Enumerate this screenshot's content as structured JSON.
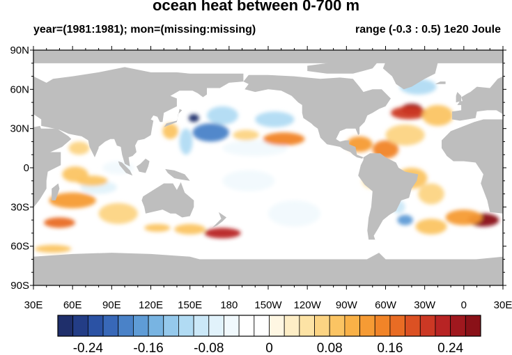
{
  "title": "ocean heat between 0-700 m",
  "subtitle_left": "year=(1981:1981); mon=(missing:missing)",
  "subtitle_right": "range (-0.3 : 0.5) 1e20 Joule",
  "map": {
    "projection": "cylindrical equidistant",
    "lon_range": [
      30,
      390
    ],
    "lat_range": [
      -90,
      90
    ],
    "land_color": "#bebebe",
    "ocean_background": "#ffffff",
    "lat_ticks": [
      {
        "lat": 90,
        "label": "90N"
      },
      {
        "lat": 60,
        "label": "60N"
      },
      {
        "lat": 30,
        "label": "30N"
      },
      {
        "lat": 0,
        "label": "0"
      },
      {
        "lat": -30,
        "label": "30S"
      },
      {
        "lat": -60,
        "label": "60S"
      },
      {
        "lat": -90,
        "label": "90S"
      }
    ],
    "lon_ticks": [
      {
        "lon": 30,
        "label": "30E"
      },
      {
        "lon": 60,
        "label": "60E"
      },
      {
        "lon": 90,
        "label": "90E"
      },
      {
        "lon": 120,
        "label": "120E"
      },
      {
        "lon": 150,
        "label": "150E"
      },
      {
        "lon": 180,
        "label": "180"
      },
      {
        "lon": 210,
        "label": "150W"
      },
      {
        "lon": 240,
        "label": "120W"
      },
      {
        "lon": 270,
        "label": "90W"
      },
      {
        "lon": 300,
        "label": "60W"
      },
      {
        "lon": 330,
        "label": "30W"
      },
      {
        "lon": 360,
        "label": "0"
      },
      {
        "lon": 390,
        "label": "30E"
      }
    ],
    "anomalies": [
      {
        "lon": 166,
        "lat": 27,
        "value": -0.2,
        "rx": 14,
        "ry": 7
      },
      {
        "lon": 153,
        "lat": 38,
        "value": -0.3,
        "rx": 4,
        "ry": 3
      },
      {
        "lon": 175,
        "lat": 40,
        "value": -0.12,
        "rx": 12,
        "ry": 7
      },
      {
        "lon": 215,
        "lat": 37,
        "value": -0.12,
        "rx": 15,
        "ry": 6
      },
      {
        "lon": 147,
        "lat": 20,
        "value": -0.12,
        "rx": 5,
        "ry": 10
      },
      {
        "lon": 200,
        "lat": 15,
        "value": -0.06,
        "rx": 25,
        "ry": 6
      },
      {
        "lon": 222,
        "lat": 22,
        "value": 0.14,
        "rx": 16,
        "ry": 5
      },
      {
        "lon": 193,
        "lat": 25,
        "value": 0.06,
        "rx": 10,
        "ry": 4
      },
      {
        "lon": 320,
        "lat": 45,
        "value": 0.3,
        "rx": 8,
        "ry": 4
      },
      {
        "lon": 318,
        "lat": 42,
        "value": 0.2,
        "rx": 14,
        "ry": 5
      },
      {
        "lon": 325,
        "lat": 62,
        "value": -0.12,
        "rx": 14,
        "ry": 6
      },
      {
        "lon": 340,
        "lat": 40,
        "value": 0.08,
        "rx": 12,
        "ry": 8
      },
      {
        "lon": 280,
        "lat": 18,
        "value": 0.12,
        "rx": 10,
        "ry": 6
      },
      {
        "lon": 300,
        "lat": 14,
        "value": 0.14,
        "rx": 10,
        "ry": 7
      },
      {
        "lon": 315,
        "lat": 25,
        "value": 0.06,
        "rx": 15,
        "ry": 8
      },
      {
        "lon": 320,
        "lat": -8,
        "value": 0.1,
        "rx": 12,
        "ry": 8
      },
      {
        "lon": 335,
        "lat": -20,
        "value": 0.06,
        "rx": 10,
        "ry": 8
      },
      {
        "lon": 315,
        "lat": -40,
        "value": -0.18,
        "rx": 6,
        "ry": 4
      },
      {
        "lon": 310,
        "lat": -30,
        "value": -0.1,
        "rx": 5,
        "ry": 5
      },
      {
        "lon": 375,
        "lat": -40,
        "value": 0.26,
        "rx": 12,
        "ry": 5
      },
      {
        "lon": 360,
        "lat": -38,
        "value": 0.12,
        "rx": 14,
        "ry": 6
      },
      {
        "lon": 335,
        "lat": -45,
        "value": 0.08,
        "rx": 12,
        "ry": 6
      },
      {
        "lon": 60,
        "lat": -25,
        "value": 0.12,
        "rx": 18,
        "ry": 6
      },
      {
        "lon": 80,
        "lat": -15,
        "value": -0.08,
        "rx": 14,
        "ry": 5
      },
      {
        "lon": 75,
        "lat": -10,
        "value": 0.1,
        "rx": 12,
        "ry": 4
      },
      {
        "lon": 50,
        "lat": -42,
        "value": 0.16,
        "rx": 12,
        "ry": 4
      },
      {
        "lon": 95,
        "lat": -35,
        "value": 0.06,
        "rx": 15,
        "ry": 8
      },
      {
        "lon": 62,
        "lat": -5,
        "value": 0.08,
        "rx": 10,
        "ry": 6
      },
      {
        "lon": 175,
        "lat": -50,
        "value": 0.22,
        "rx": 14,
        "ry": 4
      },
      {
        "lon": 150,
        "lat": -47,
        "value": 0.1,
        "rx": 12,
        "ry": 4
      },
      {
        "lon": 125,
        "lat": -46,
        "value": 0.08,
        "rx": 10,
        "ry": 3
      },
      {
        "lon": 45,
        "lat": -62,
        "value": 0.1,
        "rx": 14,
        "ry": 3
      },
      {
        "lon": 195,
        "lat": -10,
        "value": -0.05,
        "rx": 20,
        "ry": 8
      },
      {
        "lon": 230,
        "lat": -35,
        "value": -0.06,
        "rx": 20,
        "ry": 10
      },
      {
        "lon": 135,
        "lat": 28,
        "value": 0.08,
        "rx": 6,
        "ry": 6
      },
      {
        "lon": 107,
        "lat": 25,
        "value": -0.06,
        "rx": 6,
        "ry": 4
      },
      {
        "lon": 65,
        "lat": 15,
        "value": 0.06,
        "rx": 8,
        "ry": 5
      },
      {
        "lon": 290,
        "lat": -10,
        "value": 0.05,
        "rx": 8,
        "ry": 6
      },
      {
        "lon": 95,
        "lat": 0,
        "value": -0.06,
        "rx": 12,
        "ry": 5
      }
    ]
  },
  "colorbar": {
    "colors": [
      "#1f2f6b",
      "#233d86",
      "#2b52a4",
      "#3868b8",
      "#4a82c8",
      "#5f9cd6",
      "#78b4e2",
      "#95c9ec",
      "#b1dbf3",
      "#cbe8f8",
      "#e1f2fb",
      "#f1f9fd",
      "#ffffff",
      "#ffffff",
      "#fff7e3",
      "#feeec6",
      "#fde3a5",
      "#fcd483",
      "#fbc463",
      "#f9b147",
      "#f69b34",
      "#f18428",
      "#e96c24",
      "#dc5123",
      "#cc3824",
      "#b82424",
      "#a0181e",
      "#8a1118"
    ],
    "labels": [
      {
        "value": -0.24,
        "text": "-0.24"
      },
      {
        "value": -0.16,
        "text": "-0.16"
      },
      {
        "value": -0.08,
        "text": "-0.08"
      },
      {
        "value": 0,
        "text": "0"
      },
      {
        "value": 0.08,
        "text": "0.08"
      },
      {
        "value": 0.16,
        "text": "0.16"
      },
      {
        "value": 0.24,
        "text": "0.24"
      }
    ]
  }
}
